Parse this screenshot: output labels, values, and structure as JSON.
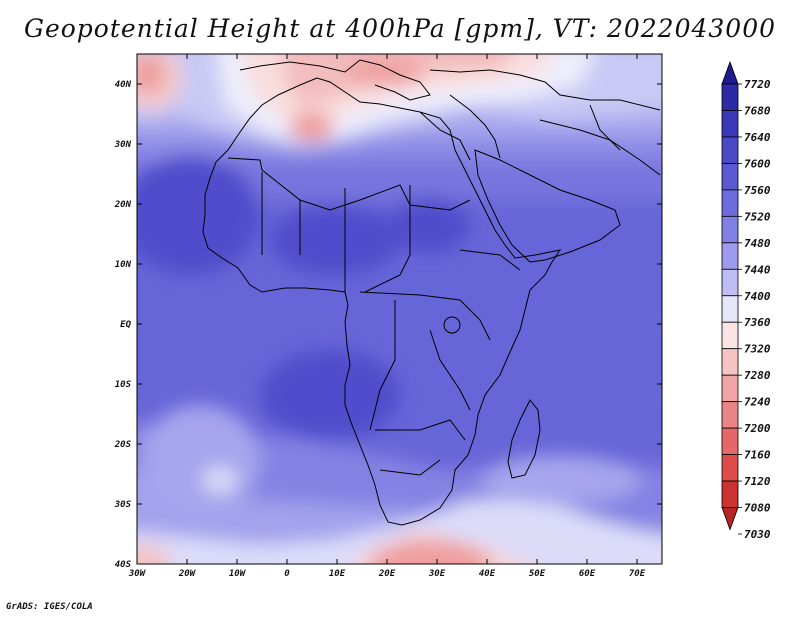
{
  "title": "Geopotential Height at 400hPa [gpm], VT: 2022043000",
  "footer": "GrADS: IGES/COLA",
  "map": {
    "lon_labels": [
      "30W",
      "20W",
      "10W",
      "0",
      "10E",
      "20E",
      "30E",
      "40E",
      "50E",
      "60E",
      "70E"
    ],
    "lat_labels": [
      "40N",
      "30N",
      "20N",
      "10N",
      "EQ",
      "10S",
      "20S",
      "30S",
      "40S"
    ]
  },
  "legend": {
    "levels": [
      "7720",
      "7680",
      "7640",
      "7600",
      "7560",
      "7520",
      "7480",
      "7440",
      "7400",
      "7360",
      "7320",
      "7280",
      "7240",
      "7200",
      "7160",
      "7120",
      "7080",
      "7030"
    ],
    "colors": [
      "#1f1a8f",
      "#2d2aa6",
      "#3a39b8",
      "#4a49c6",
      "#5b5ad3",
      "#6d6cdc",
      "#8180e4",
      "#9c9bec",
      "#bebef4",
      "#e6e6fb",
      "#fbe4e4",
      "#f6c4c4",
      "#f0a4a4",
      "#eb8585",
      "#e56767",
      "#dd4b4b",
      "#cc3232",
      "#b82323"
    ]
  }
}
